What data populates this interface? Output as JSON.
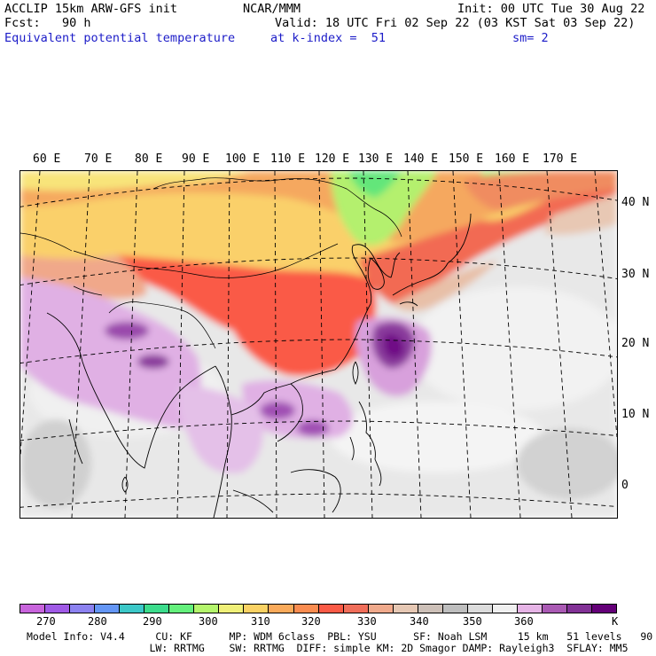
{
  "header": {
    "line1_left": "ACCLIP 15km ARW-GFS init",
    "line1_center": "NCAR/MMM",
    "line1_right": "Init: 00 UTC Tue 30 Aug 22",
    "line2_left": "Fcst:   90 h",
    "line2_right": "Valid: 18 UTC Fri 02 Sep 22 (03 KST Sat 03 Sep 22)",
    "line3_left": "Equivalent potential temperature",
    "line3_mid": "at k-index =  51",
    "line3_right": "sm= 2"
  },
  "map": {
    "lon_labels": [
      "60 E",
      "70 E",
      "80 E",
      "90 E",
      "100 E",
      "110 E",
      "120 E",
      "130 E",
      "140 E",
      "150 E",
      "160 E",
      "170 E"
    ],
    "lat_labels": [
      "40 N",
      "30 N",
      "20 N",
      "10 N",
      "0"
    ],
    "features": [
      "equivalent-potential-temperature-field",
      "coastlines",
      "country-borders",
      "graticule",
      "typhoon-feature"
    ]
  },
  "colorbar": {
    "colors": [
      "#c864dc",
      "#a05ae6",
      "#8c82f0",
      "#6496f5",
      "#3cc8c8",
      "#3cdc8c",
      "#64f07c",
      "#b4f56c",
      "#f0f078",
      "#fad264",
      "#faaa5a",
      "#fa8c50",
      "#fa5a46",
      "#f06e5a",
      "#f0aa8c",
      "#e6c8b4",
      "#cdc0b8",
      "#bebebe",
      "#dcdcdc",
      "#f0f0f0",
      "#e6b4e6",
      "#aa5ab4",
      "#823296",
      "#640078"
    ],
    "ticks": [
      "270",
      "280",
      "290",
      "300",
      "310",
      "320",
      "330",
      "340",
      "350",
      "360"
    ],
    "unit": "K"
  },
  "footer": {
    "line1": "Model Info: V4.4     CU: KF      MP: WDM 6class  PBL: YSU      SF: Noah LSM     15 km   51 levels   90 sec",
    "line2": "                    LW: RRTMG    SW: RRTMG  DIFF: simple KM: 2D Smagor DAMP: Rayleigh3  SFLAY: MM5"
  }
}
